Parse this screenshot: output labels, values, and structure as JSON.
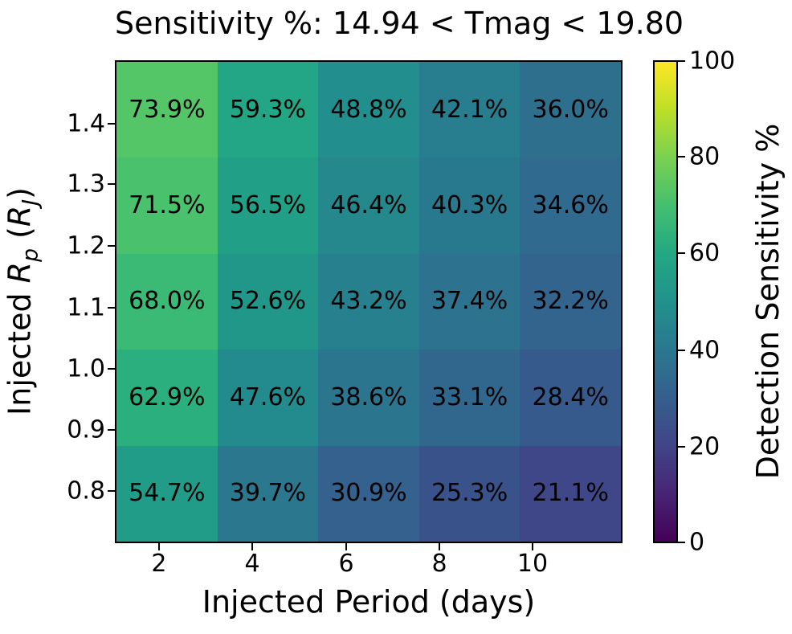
{
  "title": "Sensitivity %: 14.94 < Tmag < 19.80",
  "chart_data": {
    "type": "heatmap",
    "title": "Sensitivity %: 14.94 < Tmag < 19.80",
    "xlabel": "Injected Period (days)",
    "ylabel_plain": "Injected Rp (RJ)",
    "ylabel_parts": {
      "prefix": "Injected ",
      "symbol": "R",
      "symbol_sub": "p",
      "unit_open": " (",
      "unit_symbol": "R",
      "unit_sub": "J",
      "unit_close": ")"
    },
    "colorbar_label": "Detection Sensitivity %",
    "colormap": "viridis",
    "x_categories_period_days": [
      2,
      4,
      6,
      8,
      10
    ],
    "y_row_centers_radius_rj": [
      1.4,
      1.25,
      1.1,
      0.95,
      0.8
    ],
    "values_pct": [
      [
        73.9,
        59.3,
        48.8,
        42.1,
        36.0
      ],
      [
        71.5,
        56.5,
        46.4,
        40.3,
        34.6
      ],
      [
        68.0,
        52.6,
        43.2,
        37.4,
        32.2
      ],
      [
        62.9,
        47.6,
        38.6,
        33.1,
        28.4
      ],
      [
        54.7,
        39.7,
        30.9,
        25.3,
        21.1
      ]
    ],
    "cell_labels": [
      [
        "73.9%",
        "59.3%",
        "48.8%",
        "42.1%",
        "36.0%"
      ],
      [
        "71.5%",
        "56.5%",
        "46.4%",
        "40.3%",
        "34.6%"
      ],
      [
        "68.0%",
        "52.6%",
        "43.2%",
        "37.4%",
        "32.2%"
      ],
      [
        "62.9%",
        "47.6%",
        "38.6%",
        "33.1%",
        "28.4%"
      ],
      [
        "54.7%",
        "39.7%",
        "30.9%",
        "25.3%",
        "21.1%"
      ]
    ],
    "cell_colors": [
      [
        "#55c667",
        "#22a685",
        "#228e8d",
        "#287d8e",
        "#2e6f8e"
      ],
      [
        "#4ac16d",
        "#22a087",
        "#24888d",
        "#29798e",
        "#306a8e"
      ],
      [
        "#3aba75",
        "#21978a",
        "#27808e",
        "#2d728e",
        "#32648d"
      ],
      [
        "#2caf7e",
        "#238b8d",
        "#2b758e",
        "#31678d",
        "#375a8c"
      ],
      [
        "#219c88",
        "#2a778e",
        "#34618d",
        "#3a528a",
        "#404788"
      ]
    ],
    "x_ticks": [
      {
        "label": "2",
        "pos_pct": 8.7
      },
      {
        "label": "4",
        "pos_pct": 27.06
      },
      {
        "label": "6",
        "pos_pct": 45.57
      },
      {
        "label": "8",
        "pos_pct": 63.93
      },
      {
        "label": "10",
        "pos_pct": 82.28
      }
    ],
    "y_ticks": [
      {
        "label": "1.4",
        "pos_pct": 13.2
      },
      {
        "label": "1.3",
        "pos_pct": 25.67
      },
      {
        "label": "1.2",
        "pos_pct": 38.43
      },
      {
        "label": "1.1",
        "pos_pct": 51.3
      },
      {
        "label": "1.0",
        "pos_pct": 63.95
      },
      {
        "label": "0.9",
        "pos_pct": 76.51
      },
      {
        "label": "0.8",
        "pos_pct": 89.18
      }
    ],
    "xlim_days": [
      1.05,
      11.95
    ],
    "ylim_rj": [
      0.72,
      1.5
    ],
    "grid_lines": "off",
    "legend": "none",
    "colorbar": {
      "min_value": 0,
      "max_value": 100,
      "ticks": [
        {
          "label": "100",
          "value": 100
        },
        {
          "label": "80",
          "value": 80
        },
        {
          "label": "60",
          "value": 60
        },
        {
          "label": "40",
          "value": 40
        },
        {
          "label": "20",
          "value": 20
        },
        {
          "label": "0",
          "value": 0
        }
      ],
      "gradient_stops": [
        {
          "pct": 0,
          "color": "#440154"
        },
        {
          "pct": 10,
          "color": "#482475"
        },
        {
          "pct": 20,
          "color": "#414487"
        },
        {
          "pct": 30,
          "color": "#355f8d"
        },
        {
          "pct": 40,
          "color": "#2a788e"
        },
        {
          "pct": 50,
          "color": "#21918c"
        },
        {
          "pct": 60,
          "color": "#22a884"
        },
        {
          "pct": 70,
          "color": "#44bf70"
        },
        {
          "pct": 80,
          "color": "#7ad151"
        },
        {
          "pct": 90,
          "color": "#bddf26"
        },
        {
          "pct": 100,
          "color": "#fde725"
        }
      ]
    }
  }
}
